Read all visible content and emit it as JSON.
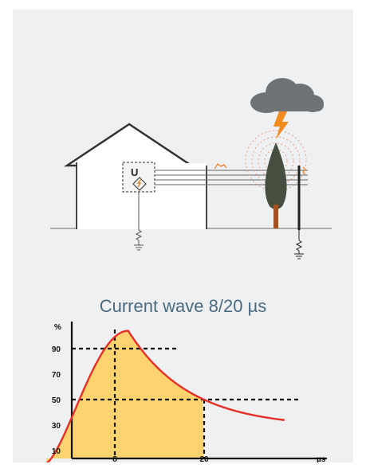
{
  "diagram": {
    "device_label": "U"
  },
  "chart_data": {
    "type": "area",
    "title": "Current wave 8/20",
    "title_unit": "µs",
    "ylabel": "%",
    "xlabel": "µs",
    "y_ticks": [
      "90",
      "70",
      "50",
      "30",
      "10"
    ],
    "x_ticks": [
      "8",
      "20"
    ],
    "markers": {
      "peak_time": 8,
      "half_value_time": 20,
      "levels": [
        90,
        50
      ]
    },
    "colors": {
      "curve": "#e53027",
      "fill": "#fcd36e",
      "text": "#4a6a80"
    }
  }
}
